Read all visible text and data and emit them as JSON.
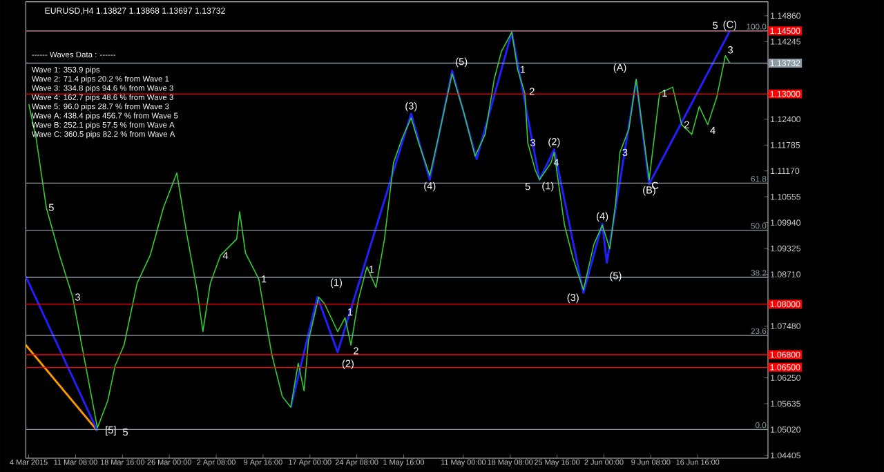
{
  "chart_data": {
    "type": "line",
    "title": "EURUSD,H4  1.13827 1.13868 1.13697 1.13732",
    "xlim": [
      "2015-03-03T13:00",
      "2015-06-27T16:00"
    ],
    "ylim": [
      1.0434,
      1.1519
    ],
    "y2lim": [
      -7.2,
      107.3
    ],
    "xticks": [
      {
        "value": "2015-03-04T00:00",
        "label": "4 Mar 2015"
      },
      {
        "value": "2015-03-11T08:00",
        "label": "11 Mar 08:00"
      },
      {
        "value": "2015-03-18T16:00",
        "label": "18 Mar 16:00"
      },
      {
        "value": "2015-03-26T00:00",
        "label": "26 Mar 00:00"
      },
      {
        "value": "2015-04-02T08:00",
        "label": "2 Apr 08:00"
      },
      {
        "value": "2015-04-09T16:00",
        "label": "9 Apr 16:00"
      },
      {
        "value": "2015-04-17T00:00",
        "label": "17 Apr 00:00"
      },
      {
        "value": "2015-04-24T08:00",
        "label": "24 Apr 08:00"
      },
      {
        "value": "2015-05-01T16:00",
        "label": "1 May 16:00"
      },
      {
        "value": "2015-05-11T00:00",
        "label": "11 May 00:00"
      },
      {
        "value": "2015-05-18T08:00",
        "label": "18 May 08:00"
      },
      {
        "value": "2015-05-25T16:00",
        "label": "25 May 16:00"
      },
      {
        "value": "2015-06-02T00:00",
        "label": "2 Jun 00:00"
      },
      {
        "value": "2015-06-09T08:00",
        "label": "9 Jun 08:00"
      },
      {
        "value": "2015-06-16T16:00",
        "label": "16 Jun 16:00"
      }
    ],
    "yticks": [
      {
        "value": 1.1486,
        "label": "1.14860"
      },
      {
        "value": 1.14245,
        "label": "1.14245"
      },
      {
        "value": 1.124,
        "label": "1.12400"
      },
      {
        "value": 1.11785,
        "label": "1.11785"
      },
      {
        "value": 1.1117,
        "label": "1.11170"
      },
      {
        "value": 1.10555,
        "label": "1.10555"
      },
      {
        "value": 1.0994,
        "label": "1.09940"
      },
      {
        "value": 1.09325,
        "label": "1.09325"
      },
      {
        "value": 1.0871,
        "label": "1.08710"
      },
      {
        "value": 1.0748,
        "label": "1.07480"
      },
      {
        "value": 1.0625,
        "label": "1.06250"
      },
      {
        "value": 1.05635,
        "label": "1.05635"
      },
      {
        "value": 1.0502,
        "label": "1.05020"
      },
      {
        "value": 1.04405,
        "label": "1.04405"
      }
    ],
    "grid": false,
    "marker": "none",
    "line_style": "solid",
    "series": [
      {
        "color": "#33cc33",
        "x": [
          "2015-03-04T00:00",
          "2015-03-05T04:00",
          "2015-03-06T18:00",
          "2015-03-08T20:00",
          "2015-03-10T21:00",
          "2015-03-12T22:00",
          "2015-03-14T18:00",
          "2015-03-16T09:00",
          "2015-03-17T12:00",
          "2015-03-18T22:00",
          "2015-03-20T23:00",
          "2015-03-23T00:00",
          "2015-03-25T02:00",
          "2015-03-27T04:00",
          "2015-03-28T18:00",
          "2015-03-30T08:00",
          "2015-03-31T06:00",
          "2015-04-01T10:00",
          "2015-04-03T00:00",
          "2015-04-05T13:00",
          "2015-04-06T00:00",
          "2015-04-06T22:00",
          "2015-04-09T00:00",
          "2015-04-09T22:00",
          "2015-04-11T01:00",
          "2015-04-12T16:00",
          "2015-04-14T00:00",
          "2015-04-15T04:00",
          "2015-04-16T02:00",
          "2015-04-16T18:00",
          "2015-04-18T09:00",
          "2015-04-19T07:00",
          "2015-04-21T08:00",
          "2015-04-22T12:00",
          "2015-04-23T10:00",
          "2015-04-24T14:00",
          "2015-04-25T22:00",
          "2015-04-27T08:00",
          "2015-04-28T16:00",
          "2015-04-30T02:00",
          "2015-05-01T10:00",
          "2015-05-02T20:00",
          "2015-05-04T00:00",
          "2015-05-05T18:00",
          "2015-05-06T22:00",
          "2015-05-09T06:00",
          "2015-05-11T00:00",
          "2015-05-12T20:00",
          "2015-05-14T10:00",
          "2015-05-15T20:00",
          "2015-05-16T23:00",
          "2015-05-18T14:00",
          "2015-05-19T12:00",
          "2015-05-20T15:00",
          "2015-05-21T02:00",
          "2015-05-22T06:00",
          "2015-05-22T22:00",
          "2015-05-24T18:00",
          "2015-05-25T05:00",
          "2015-05-26T20:00",
          "2015-05-28T04:00",
          "2015-05-29T19:00",
          "2015-05-31T10:00",
          "2015-06-01T18:00",
          "2015-06-02T22:00",
          "2015-06-03T20:00",
          "2015-06-04T12:00",
          "2015-06-05T22:00",
          "2015-06-07T01:00",
          "2015-06-07T23:00",
          "2015-06-09T02:00",
          "2015-06-10T17:00",
          "2015-06-12T18:00",
          "2015-06-14T04:00",
          "2015-06-15T18:00",
          "2015-06-16T22:00",
          "2015-06-18T06:00",
          "2015-06-19T16:00",
          "2015-06-21T00:00",
          "2015-06-21T17:00"
        ],
        "values": [
          1.1276,
          1.1194,
          1.103,
          1.0916,
          1.0817,
          1.0653,
          1.0506,
          1.0571,
          1.0653,
          1.0703,
          1.085,
          1.0916,
          1.103,
          1.1112,
          1.0965,
          1.0834,
          1.0735,
          1.085,
          1.0916,
          1.0955,
          1.102,
          1.0922,
          1.086,
          1.0778,
          1.068,
          1.0581,
          1.0555,
          1.066,
          1.0594,
          1.0712,
          1.0817,
          1.0801,
          1.0735,
          1.0768,
          1.0703,
          1.0811,
          1.0889,
          1.084,
          1.0955,
          1.1137,
          1.1194,
          1.1243,
          1.1184,
          1.1106,
          1.1184,
          1.1348,
          1.126,
          1.1152,
          1.1204,
          1.1335,
          1.1401,
          1.1447,
          1.1358,
          1.1302,
          1.1184,
          1.1119,
          1.1096,
          1.1137,
          1.1161,
          1.0988,
          1.0909,
          1.0834,
          1.0942,
          1.0988,
          1.0932,
          1.104,
          1.1161,
          1.1217,
          1.1335,
          1.1227,
          1.1096,
          1.1302,
          1.1316,
          1.1227,
          1.1204,
          1.127,
          1.1227,
          1.1293,
          1.1391,
          1.1373
        ]
      },
      {
        "color": "#2020ff",
        "x": [
          "2015-04-14T00:00",
          "2015-04-18T04:00",
          "2015-04-21T08:00",
          "2015-05-02T20:00",
          "2015-05-05T18:00",
          "2015-05-09T06:00",
          "2015-05-13T02:00",
          "2015-05-18T14:00",
          "2015-05-22T22:00",
          "2015-05-25T05:00",
          "2015-05-29T19:00",
          "2015-06-01T18:00",
          "2015-06-02T11:00",
          "2015-06-07T01:00",
          "2015-06-09T02:00",
          "2015-06-21T17:00"
        ],
        "values": [
          1.0555,
          1.0817,
          1.0686,
          1.1253,
          1.1096,
          1.1355,
          1.1145,
          1.1447,
          1.1096,
          1.1168,
          1.0827,
          1.0991,
          1.0899,
          1.1332,
          1.1086,
          1.145
        ]
      },
      {
        "color": "#2020ff",
        "x": [
          "2015-03-03T13:00",
          "2015-03-14T18:00"
        ],
        "values": [
          1.0866,
          1.0499
        ]
      },
      {
        "color": "#ff9900",
        "x": [
          "2015-03-03T13:00",
          "2015-03-14T18:00"
        ],
        "values": [
          1.0703,
          1.0499
        ]
      }
    ],
    "ref_lines": [
      {
        "axis": "y",
        "value": 1.145,
        "label": "1.14500",
        "color": "#ff0000"
      },
      {
        "axis": "y",
        "value": 1.13732,
        "label": "1.13732",
        "color": "#8c9ca4"
      },
      {
        "axis": "y",
        "value": 1.13,
        "label": "1.13000",
        "color": "#ff0000"
      },
      {
        "axis": "y",
        "value": 1.08,
        "label": "1.08000",
        "color": "#ff0000"
      },
      {
        "axis": "y",
        "value": 1.068,
        "label": "1.06800",
        "color": "#ff0000"
      },
      {
        "axis": "y",
        "value": 1.065,
        "label": "1.06500",
        "color": "#ff0000"
      },
      {
        "axis": "y2",
        "value": 100.0,
        "label": "100.0",
        "color": "#8c9ca4"
      },
      {
        "axis": "y2",
        "value": 61.8,
        "label": "61.8",
        "color": "#8c9ca4"
      },
      {
        "axis": "y2",
        "value": 50.0,
        "label": "50.0",
        "color": "#8c9ca4"
      },
      {
        "axis": "y2",
        "value": 38.2,
        "label": "38.2",
        "color": "#8c9ca4"
      },
      {
        "axis": "y2",
        "value": 23.6,
        "label": "23.6",
        "color": "#8c9ca4"
      },
      {
        "axis": "y2",
        "value": 0.0,
        "label": "0.0",
        "color": "#8c9ca4"
      }
    ],
    "annotations": [
      "------ Waves Data : ------",
      "Wave 1: 353.9 pips",
      "Wave 2: 71.4 pips 20.2 % from Wave 1",
      "Wave 3: 334.8 pips 94.6 % from Wave 3",
      "Wave 4: 162.7 pips 48.6 % from Wave 3",
      "Wave 5: 96.0 pips 28.7 % from Wave 3",
      "Wave A: 438.4 pips 456.7 % from Wave 5",
      "Wave B: 252.1 pips 57.5 % from Wave A",
      "Wave C: 360.5 pips 82.2 % from Wave A",
      {
        "text": "5",
        "x": "2015-03-06T18:00",
        "y": 1.103
      },
      {
        "text": "3",
        "x": "2015-03-10T21:00",
        "y": 1.0817
      },
      {
        "text": "[5]",
        "x": "2015-03-16T20:00",
        "y": 1.0499
      },
      {
        "text": "5",
        "x": "2015-03-19T03:00",
        "y": 1.0496
      },
      {
        "text": "4",
        "x": "2015-04-03T00:00",
        "y": 1.0916
      },
      {
        "text": "1",
        "x": "2015-04-09T00:00",
        "y": 1.086
      },
      {
        "text": "(1)",
        "x": "2015-04-21T03:00",
        "y": 1.085
      },
      {
        "text": "1",
        "x": "2015-04-22T12:00",
        "y": 1.0768
      },
      {
        "text": "2",
        "x": "2015-04-23T10:00",
        "y": 1.0703
      },
      {
        "text": "(2)",
        "x": "2015-04-22T23:00",
        "y": 1.0657
      },
      {
        "text": "1",
        "x": "2015-04-26T15:00",
        "y": 1.0883
      },
      {
        "text": "(3)",
        "x": "2015-05-02T20:00",
        "y": 1.1253
      },
      {
        "text": "(4)",
        "x": "2015-05-05T18:00",
        "y": 1.1096
      },
      {
        "text": "(5)",
        "x": "2015-05-10T17:00",
        "y": 1.1375
      },
      {
        "text": "1",
        "x": "2015-05-19T12:00",
        "y": 1.1358
      },
      {
        "text": "2",
        "x": "2015-05-21T18:00",
        "y": 1.1306
      },
      {
        "text": "3",
        "x": "2015-05-21T02:00",
        "y": 1.1184
      },
      {
        "text": "4",
        "x": "2015-05-24T18:00",
        "y": 1.1137
      },
      {
        "text": "5",
        "x": "2015-05-21T02:00",
        "y": 1.108
      },
      {
        "text": "(1)",
        "x": "2015-05-22T22:00",
        "y": 1.1096
      },
      {
        "text": "(2)",
        "x": "2015-05-25T05:00",
        "y": 1.1168
      },
      {
        "text": "(3)",
        "x": "2015-05-28T04:00",
        "y": 1.0814
      },
      {
        "text": "(4)",
        "x": "2015-06-01T18:00",
        "y": 1.0991
      },
      {
        "text": "(5)",
        "x": "2015-06-03T20:00",
        "y": 1.0866
      },
      {
        "text": "3",
        "x": "2015-06-04T12:00",
        "y": 1.1161
      },
      {
        "text": "(A)",
        "x": "2015-06-04T12:00",
        "y": 1.1361
      },
      {
        "text": "1",
        "x": "2015-06-10T17:00",
        "y": 1.1302
      },
      {
        "text": "(B)",
        "x": "2015-06-09T02:00",
        "y": 1.1086
      },
      {
        "text": "C",
        "x": "2015-06-09T02:00",
        "y": 1.1096
      },
      {
        "text": "2",
        "x": "2015-06-14T04:00",
        "y": 1.1227
      },
      {
        "text": "3",
        "x": "2015-06-21T00:00",
        "y": 1.1391
      },
      {
        "text": "4",
        "x": "2015-06-18T06:00",
        "y": 1.1227
      },
      {
        "text": "5",
        "x": "2015-06-19T10:00",
        "y": 1.1463
      },
      {
        "text": "(C)",
        "x": "2015-06-21T17:00",
        "y": 1.1463
      }
    ]
  }
}
